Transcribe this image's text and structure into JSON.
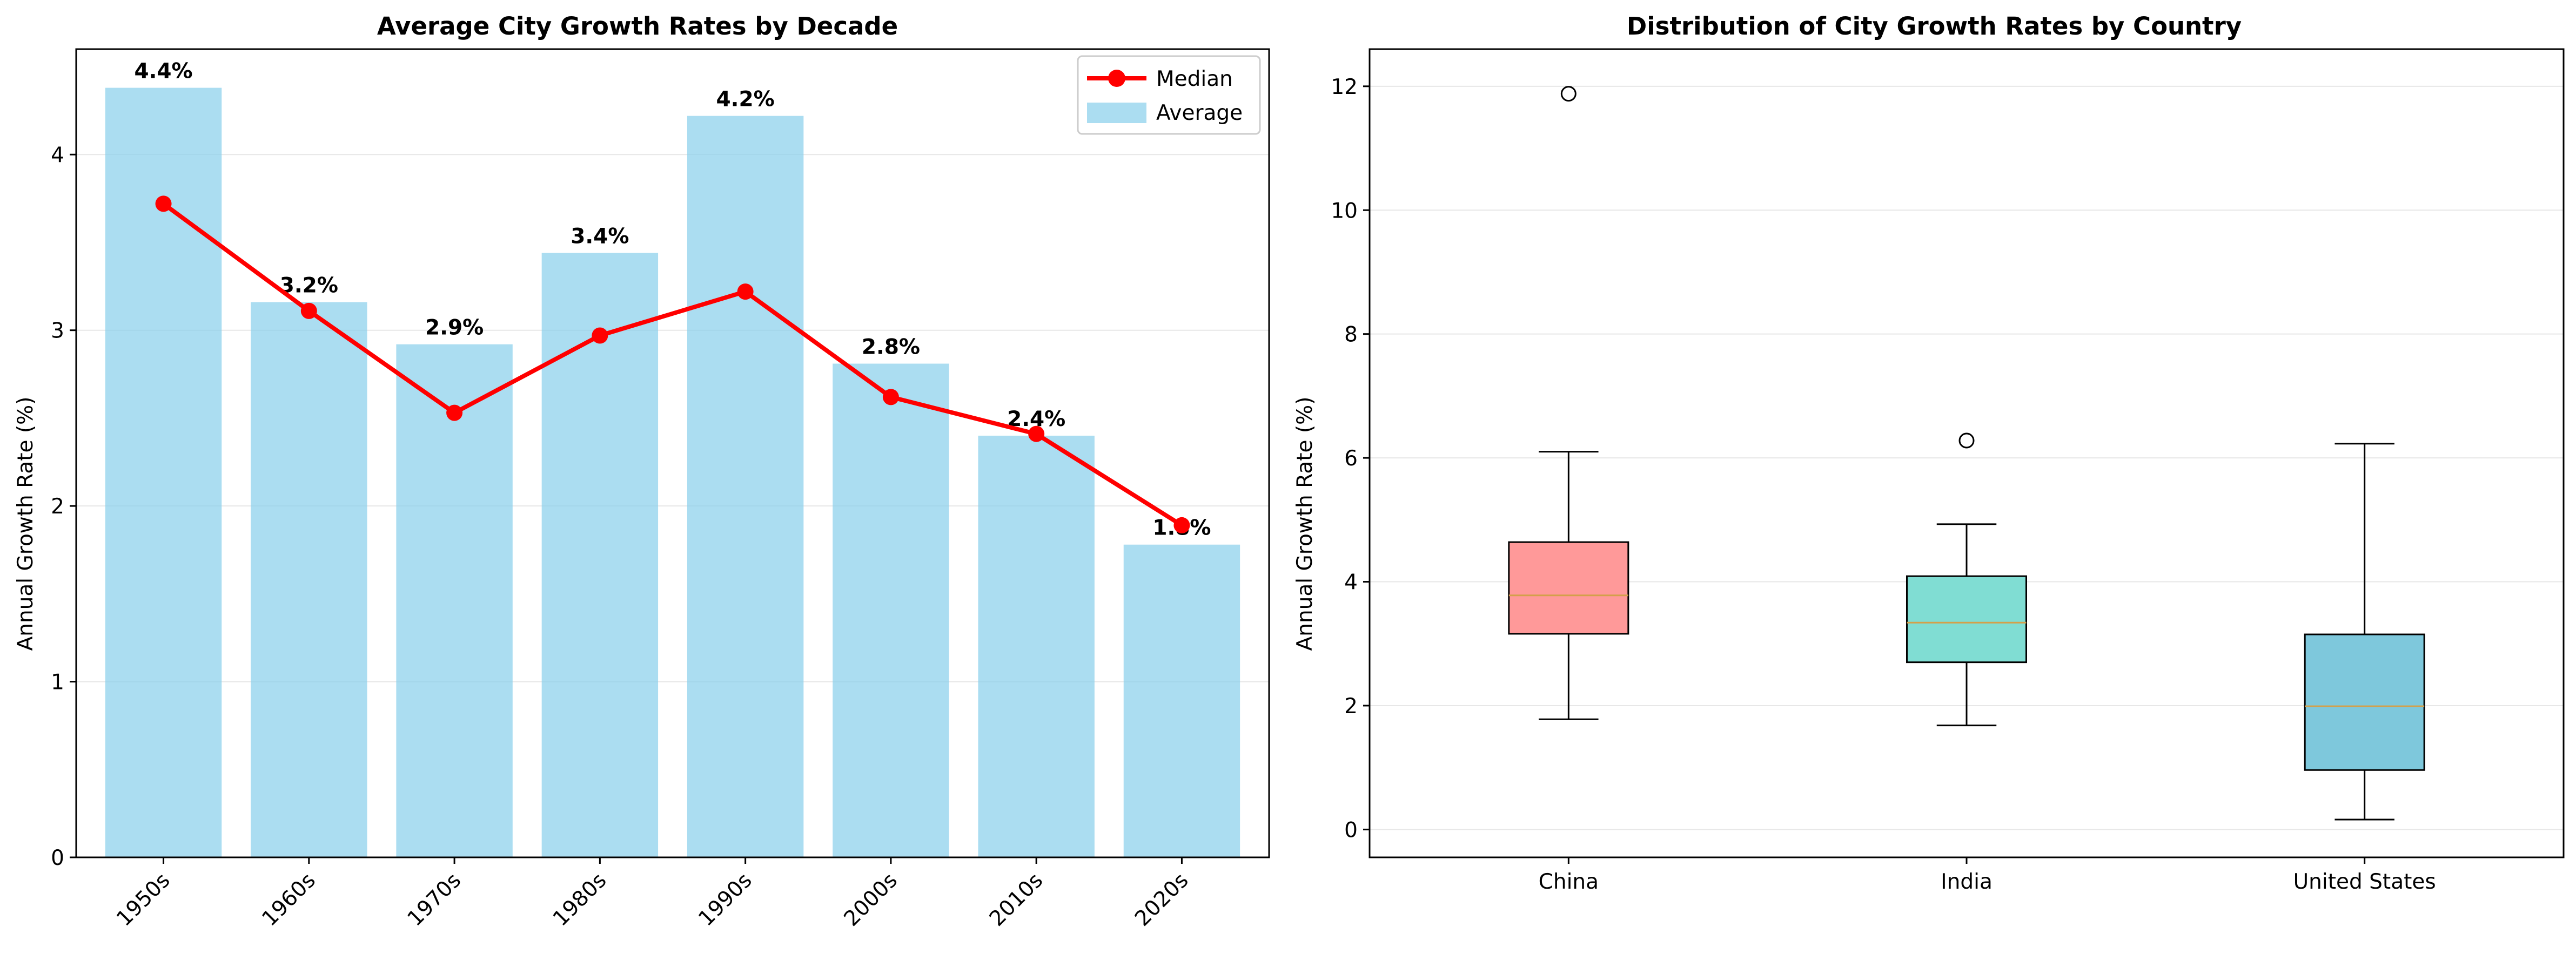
{
  "chart_data": [
    {
      "type": "bar",
      "title": "Average City Growth Rates by Decade",
      "xlabel": "",
      "ylabel": "Annual Growth Rate (%)",
      "categories": [
        "1950s",
        "1960s",
        "1970s",
        "1980s",
        "1990s",
        "2000s",
        "2010s",
        "2020s"
      ],
      "ylim": [
        0,
        4.6
      ],
      "yticks": [
        0,
        1,
        2,
        3,
        4
      ],
      "grid": "y",
      "legend": "top-right",
      "series": [
        {
          "name": "Average",
          "kind": "bar",
          "color": "#87CEEB",
          "values": [
            4.38,
            3.16,
            2.92,
            3.44,
            4.22,
            2.81,
            2.4,
            1.78
          ],
          "labels": [
            "4.4%",
            "3.2%",
            "2.9%",
            "3.4%",
            "4.2%",
            "2.8%",
            "2.4%",
            "1.8%"
          ]
        },
        {
          "name": "Median",
          "kind": "line",
          "color": "#FF0000",
          "values": [
            3.72,
            3.11,
            2.53,
            2.97,
            3.22,
            2.62,
            2.41,
            1.89
          ]
        }
      ]
    },
    {
      "type": "box",
      "title": "Distribution of City Growth Rates by Country",
      "xlabel": "",
      "ylabel": "Annual Growth Rate (%)",
      "categories": [
        "China",
        "India",
        "United States"
      ],
      "ylim": [
        -0.45,
        12.6
      ],
      "yticks": [
        0,
        2,
        4,
        6,
        8,
        10,
        12
      ],
      "grid": "y",
      "boxes": [
        {
          "name": "China",
          "color": "#FF9999",
          "whisker_low": 1.78,
          "q1": 3.16,
          "median": 3.78,
          "q3": 4.64,
          "whisker_high": 6.1,
          "outliers": [
            11.88
          ]
        },
        {
          "name": "India",
          "color": "#80DDD3",
          "whisker_low": 1.68,
          "q1": 2.7,
          "median": 3.34,
          "q3": 4.09,
          "whisker_high": 4.93,
          "outliers": [
            6.28
          ]
        },
        {
          "name": "United States",
          "color": "#7EC8DC",
          "whisker_low": 0.16,
          "q1": 0.96,
          "median": 1.99,
          "q3": 3.15,
          "whisker_high": 6.23,
          "outliers": []
        }
      ]
    }
  ]
}
